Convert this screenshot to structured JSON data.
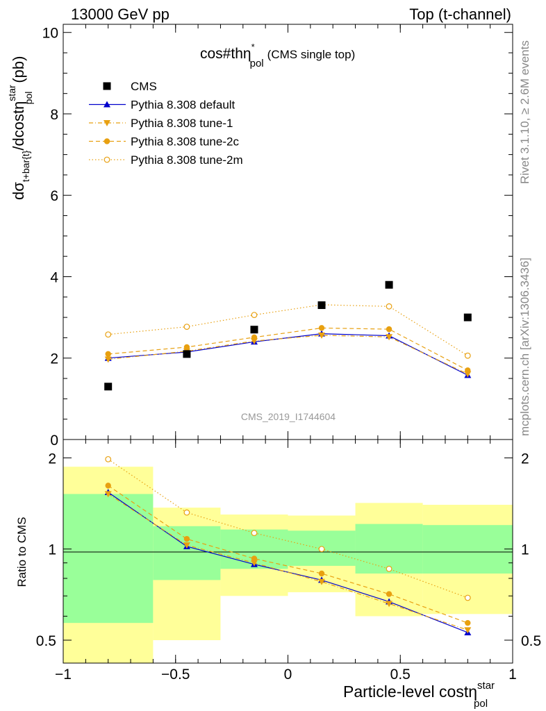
{
  "header": {
    "left": "13000 GeV pp",
    "right": "Top (t-channel)"
  },
  "side_text": {
    "rivet": "Rivet 3.1.10, ≥ 2.6M events",
    "mcplots": "mcplots.cern.ch [arXiv:1306.3436]"
  },
  "watermark": "CMS_2019_I1744604",
  "plot_title": {
    "main": "cos#thη",
    "sup": "*",
    "sub": "pol",
    "suffix": "(CMS single top)"
  },
  "colors": {
    "cms": "#000000",
    "default": "#0000cc",
    "tunes": "#e8a010",
    "band_inner": "#99ff99",
    "band_outer": "#ffff99"
  },
  "chart_data": [
    {
      "type": "scatter",
      "panel": "main",
      "xlim": [
        -1,
        1
      ],
      "ylim": [
        0,
        10.2
      ],
      "yticks": [
        0,
        2,
        4,
        6,
        8,
        10
      ],
      "ylabel": {
        "main": "dσ",
        "sub": "t+bar{t}",
        "rest": "/dcostη",
        "sup": "star",
        "sub2": "pol",
        "unit": "(pb)"
      },
      "legend_position": "top-left",
      "bins": [
        [
          -1,
          -0.6
        ],
        [
          -0.6,
          -0.3
        ],
        [
          -0.3,
          0
        ],
        [
          0,
          0.3
        ],
        [
          0.3,
          0.6
        ],
        [
          0.6,
          1
        ]
      ],
      "x": [
        -0.8,
        -0.45,
        -0.15,
        0.15,
        0.45,
        0.8
      ],
      "series": [
        {
          "name": "CMS",
          "style": "data",
          "marker": "square",
          "values": [
            1.3,
            2.1,
            2.7,
            3.3,
            3.8,
            3.0
          ]
        },
        {
          "name": "Pythia 8.308 default",
          "style": "solid",
          "marker": "triangle-up",
          "values": [
            2.0,
            2.15,
            2.4,
            2.6,
            2.55,
            1.58
          ]
        },
        {
          "name": "Pythia 8.308 tune-1",
          "style": "dashdot",
          "marker": "triangle-down",
          "values": [
            1.97,
            2.17,
            2.42,
            2.56,
            2.52,
            1.61
          ]
        },
        {
          "name": "Pythia 8.308 tune-2c",
          "style": "dashed",
          "marker": "circle",
          "values": [
            2.1,
            2.27,
            2.51,
            2.74,
            2.71,
            1.7
          ]
        },
        {
          "name": "Pythia 8.308 tune-2m",
          "style": "dotted",
          "marker": "circle-open",
          "values": [
            2.58,
            2.77,
            3.06,
            3.31,
            3.27,
            2.06
          ]
        }
      ]
    },
    {
      "type": "scatter",
      "panel": "ratio",
      "xlabel": {
        "main": "Particle-level costη",
        "sup": "star",
        "sub": "pol"
      },
      "ylabel": "Ratio to CMS",
      "yscale": "log",
      "ylim": [
        0.42,
        2.3
      ],
      "yticks": [
        0.5,
        1,
        2
      ],
      "xticks": [
        -1,
        -0.5,
        0,
        0.5,
        1
      ],
      "xticklabels": [
        "−1",
        "−0.5",
        "0",
        "0.5",
        "1"
      ],
      "bins": [
        [
          -1,
          -0.6
        ],
        [
          -0.6,
          -0.3
        ],
        [
          -0.3,
          0
        ],
        [
          0,
          0.3
        ],
        [
          0.3,
          0.6
        ],
        [
          0.6,
          1
        ]
      ],
      "band_inner": [
        [
          0.57,
          1.52
        ],
        [
          0.79,
          1.19
        ],
        [
          0.86,
          1.16
        ],
        [
          0.88,
          1.15
        ],
        [
          0.83,
          1.21
        ],
        [
          0.83,
          1.2
        ]
      ],
      "band_outer": [
        [
          0.42,
          1.87
        ],
        [
          0.5,
          1.37
        ],
        [
          0.7,
          1.3
        ],
        [
          0.72,
          1.29
        ],
        [
          0.6,
          1.42
        ],
        [
          0.61,
          1.4
        ]
      ],
      "x": [
        -0.8,
        -0.45,
        -0.15,
        0.15,
        0.45,
        0.8
      ],
      "series": [
        {
          "name": "Pythia 8.308 default",
          "style": "solid",
          "marker": "triangle-up",
          "values": [
            1.54,
            1.02,
            0.89,
            0.79,
            0.67,
            0.53
          ]
        },
        {
          "name": "Pythia 8.308 tune-1",
          "style": "dashdot",
          "marker": "triangle-down",
          "values": [
            1.52,
            1.03,
            0.9,
            0.78,
            0.66,
            0.54
          ]
        },
        {
          "name": "Pythia 8.308 tune-2c",
          "style": "dashed",
          "marker": "circle",
          "values": [
            1.62,
            1.08,
            0.93,
            0.83,
            0.71,
            0.57
          ]
        },
        {
          "name": "Pythia 8.308 tune-2m",
          "style": "dotted",
          "marker": "circle-open",
          "values": [
            1.98,
            1.32,
            1.13,
            1.0,
            0.86,
            0.69
          ]
        }
      ]
    }
  ]
}
